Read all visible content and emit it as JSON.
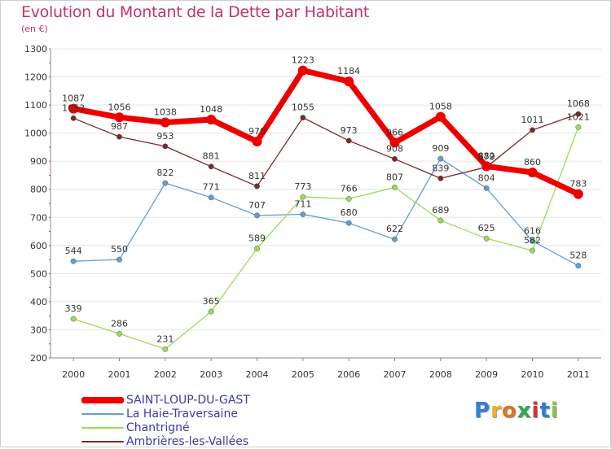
{
  "title": "Evolution du Montant de la Dette par Habitant",
  "subtitle": "(en €)",
  "logo": {
    "text": "Proxiti",
    "letter_colors": [
      "#2f7fd6",
      "#e8b51c",
      "#e07420",
      "#2fa84f",
      "#d9322c",
      "#2f7fd6",
      "#8ac640"
    ]
  },
  "chart_data": {
    "type": "line",
    "title": "Evolution du Montant de la Dette par Habitant",
    "subtitle": "(en €)",
    "xlabel": "",
    "ylabel": "",
    "x": [
      "2000",
      "2001",
      "2002",
      "2003",
      "2004",
      "2005",
      "2006",
      "2007",
      "2008",
      "2009",
      "2010",
      "2011"
    ],
    "ylim": [
      200,
      1300
    ],
    "yticks": [
      200,
      300,
      400,
      500,
      600,
      700,
      800,
      900,
      1000,
      1100,
      1200,
      1300
    ],
    "grid": "horizontal",
    "legend_position": "bottom-left",
    "series": [
      {
        "name": "SAINT-LOUP-DU-GAST",
        "color": "#ee0000",
        "values": [
          1087,
          1056,
          1038,
          1048,
          970,
          1223,
          1184,
          966,
          1058,
          882,
          860,
          783
        ]
      },
      {
        "name": "La Haie-Traversaine",
        "color": "#5f9fd4",
        "values": [
          544,
          550,
          822,
          771,
          707,
          711,
          680,
          622,
          909,
          804,
          616,
          528
        ]
      },
      {
        "name": "Chantrigné",
        "color": "#99dd55",
        "values": [
          339,
          286,
          231,
          365,
          589,
          773,
          766,
          807,
          689,
          625,
          582,
          1021
        ]
      },
      {
        "name": "Ambrières-les-Vallées",
        "color": "#7a2a2a",
        "values": [
          1053,
          987,
          953,
          881,
          811,
          1055,
          973,
          908,
          839,
          879,
          1011,
          1068
        ]
      }
    ]
  }
}
